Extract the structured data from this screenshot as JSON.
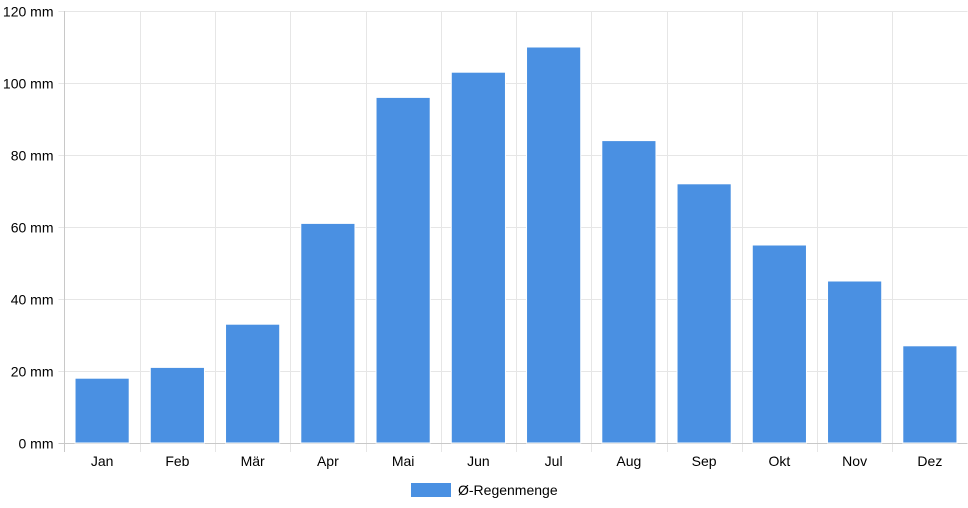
{
  "chart_data": {
    "type": "bar",
    "categories": [
      "Jan",
      "Feb",
      "Mär",
      "Apr",
      "Mai",
      "Jun",
      "Jul",
      "Aug",
      "Sep",
      "Okt",
      "Nov",
      "Dez"
    ],
    "series": [
      {
        "name": "Ø-Regenmenge",
        "color": "#4a90e2",
        "values": [
          18,
          21,
          33,
          61,
          96,
          103,
          110,
          84,
          72,
          55,
          45,
          27
        ]
      }
    ],
    "y_ticks": [
      "0 mm",
      "20 mm",
      "40 mm",
      "60 mm",
      "80 mm",
      "100 mm",
      "120 mm"
    ],
    "ylim": [
      0,
      120
    ],
    "y_step": 20,
    "grid": true,
    "legend_position": "bottom",
    "title": "",
    "xlabel": "",
    "ylabel": ""
  }
}
